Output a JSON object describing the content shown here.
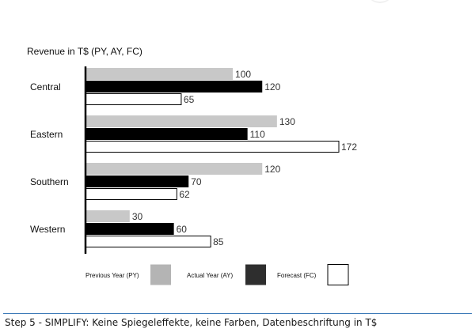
{
  "chart_data": {
    "type": "bar",
    "orientation": "horizontal",
    "title": "Revenue in T$ (PY, AY, FC)",
    "categories": [
      "Central",
      "Eastern",
      "Southern",
      "Western"
    ],
    "series": [
      {
        "name": "Previous Year (PY)",
        "values": [
          100,
          130,
          120,
          30
        ],
        "color": "#c8c8c8",
        "stroke": "#c8c8c8"
      },
      {
        "name": "Actual Year (AY)",
        "values": [
          120,
          110,
          70,
          60
        ],
        "color": "#000000",
        "stroke": "#000000"
      },
      {
        "name": "Forecast (FC)",
        "values": [
          65,
          172,
          62,
          85
        ],
        "color": "#ffffff",
        "stroke": "#000000"
      }
    ],
    "xlim": [
      0,
      172
    ],
    "grid": false,
    "data_labels": true,
    "legend": {
      "placement": "bottom",
      "items": [
        {
          "label": "Previous Year (PY)",
          "color": "#b4b4b4"
        },
        {
          "label": "Actual Year (AY)",
          "color": "#2e2e2e"
        },
        {
          "label": "Forecast (FC)",
          "color": "#ffffff"
        }
      ]
    }
  },
  "caption": "Step 5 - SIMPLIFY: Keine Spiegeleffekte, keine Farben, Datenbeschriftung in T$",
  "colors": {
    "caption_rule": "#3d7ab8"
  }
}
